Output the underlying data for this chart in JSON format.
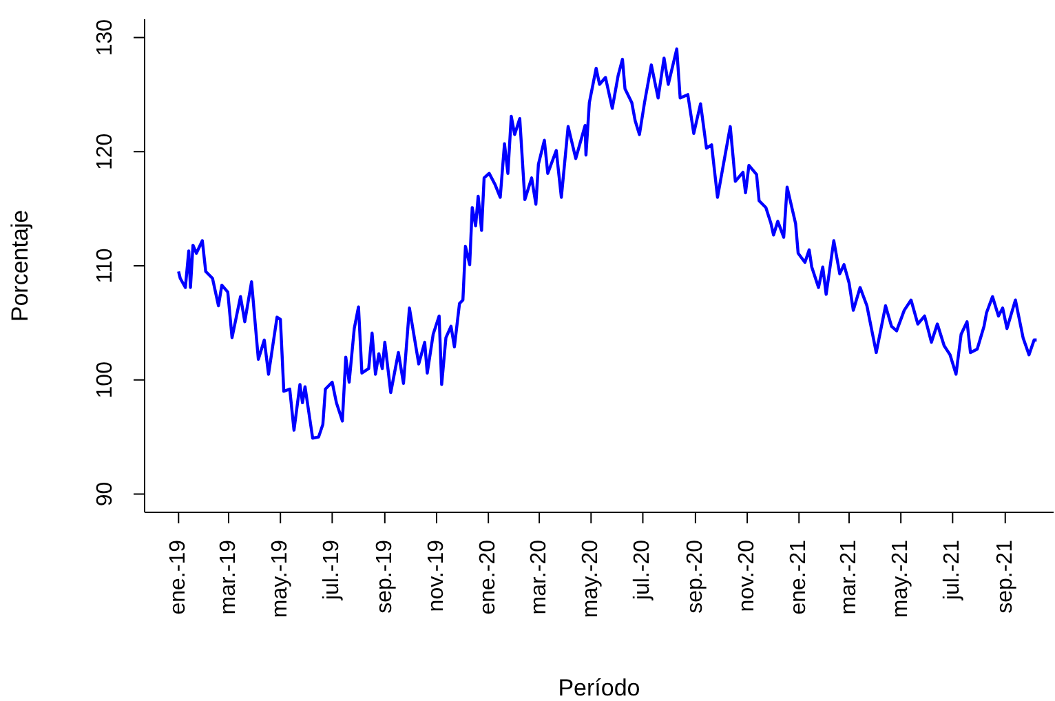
{
  "chart_data": {
    "type": "line",
    "xlabel": "Período",
    "ylabel": "Porcentaje",
    "xlim": [
      "2018-11-22",
      "2021-10-28"
    ],
    "ylim": [
      88.4,
      131.6
    ],
    "yticks": [
      90,
      100,
      110,
      120,
      130
    ],
    "xticks": [
      {
        "value": "2019-01-01",
        "label": "ene.-19"
      },
      {
        "value": "2019-03-01",
        "label": "mar.-19"
      },
      {
        "value": "2019-05-01",
        "label": "may.-19"
      },
      {
        "value": "2019-07-01",
        "label": "jul.-19"
      },
      {
        "value": "2019-09-01",
        "label": "sep.-19"
      },
      {
        "value": "2019-11-01",
        "label": "nov.-19"
      },
      {
        "value": "2020-01-01",
        "label": "ene.-20"
      },
      {
        "value": "2020-03-01",
        "label": "mar.-20"
      },
      {
        "value": "2020-05-01",
        "label": "may.-20"
      },
      {
        "value": "2020-07-01",
        "label": "jul.-20"
      },
      {
        "value": "2020-09-01",
        "label": "sep.-20"
      },
      {
        "value": "2020-11-01",
        "label": "nov.-20"
      },
      {
        "value": "2021-01-01",
        "label": "ene.-21"
      },
      {
        "value": "2021-03-01",
        "label": "mar.-21"
      },
      {
        "value": "2021-05-01",
        "label": "may.-21"
      },
      {
        "value": "2021-07-01",
        "label": "jul.-21"
      },
      {
        "value": "2021-09-01",
        "label": "sep.-21"
      }
    ],
    "x": [
      "2019-01-01",
      "2019-01-03",
      "2019-01-09",
      "2019-01-13",
      "2019-01-15",
      "2019-01-18",
      "2019-01-22",
      "2019-01-29",
      "2019-02-02",
      "2019-02-10",
      "2019-02-17",
      "2019-02-21",
      "2019-02-28",
      "2019-03-05",
      "2019-03-15",
      "2019-03-20",
      "2019-03-28",
      "2019-04-05",
      "2019-04-12",
      "2019-04-17",
      "2019-04-27",
      "2019-05-01",
      "2019-05-05",
      "2019-05-12",
      "2019-05-17",
      "2019-05-24",
      "2019-05-27",
      "2019-05-30",
      "2019-06-08",
      "2019-06-15",
      "2019-06-20",
      "2019-06-23",
      "2019-07-01",
      "2019-07-06",
      "2019-07-13",
      "2019-07-17",
      "2019-07-21",
      "2019-07-27",
      "2019-08-01",
      "2019-08-05",
      "2019-08-13",
      "2019-08-17",
      "2019-08-21",
      "2019-08-25",
      "2019-08-29",
      "2019-09-01",
      "2019-09-08",
      "2019-09-17",
      "2019-09-23",
      "2019-09-30",
      "2019-10-11",
      "2019-10-18",
      "2019-10-21",
      "2019-10-28",
      "2019-11-04",
      "2019-11-07",
      "2019-11-12",
      "2019-11-18",
      "2019-11-22",
      "2019-11-28",
      "2019-12-02",
      "2019-12-05",
      "2019-12-10",
      "2019-12-13",
      "2019-12-17",
      "2019-12-20",
      "2019-12-24",
      "2019-12-27",
      "2020-01-02",
      "2020-01-09",
      "2020-01-15",
      "2020-01-20",
      "2020-01-24",
      "2020-01-28",
      "2020-02-01",
      "2020-02-07",
      "2020-02-13",
      "2020-02-21",
      "2020-02-26",
      "2020-02-29",
      "2020-03-07",
      "2020-03-11",
      "2020-03-21",
      "2020-03-27",
      "2020-04-04",
      "2020-04-13",
      "2020-04-24",
      "2020-04-25",
      "2020-04-29",
      "2020-05-07",
      "2020-05-11",
      "2020-05-18",
      "2020-05-26",
      "2020-06-02",
      "2020-06-07",
      "2020-06-10",
      "2020-06-18",
      "2020-06-22",
      "2020-06-27",
      "2020-07-03",
      "2020-07-11",
      "2020-07-19",
      "2020-07-26",
      "2020-07-31",
      "2020-08-10",
      "2020-08-14",
      "2020-08-23",
      "2020-08-30",
      "2020-09-07",
      "2020-09-14",
      "2020-09-20",
      "2020-09-27",
      "2020-10-04",
      "2020-10-12",
      "2020-10-18",
      "2020-10-27",
      "2020-10-30",
      "2020-11-03",
      "2020-11-12",
      "2020-11-15",
      "2020-11-23",
      "2020-11-29",
      "2020-12-02",
      "2020-12-07",
      "2020-12-14",
      "2020-12-18",
      "2020-12-28",
      "2020-12-31",
      "2021-01-08",
      "2021-01-13",
      "2021-01-16",
      "2021-01-24",
      "2021-01-29",
      "2021-02-02",
      "2021-02-11",
      "2021-02-18",
      "2021-02-23",
      "2021-03-01",
      "2021-03-06",
      "2021-03-14",
      "2021-03-22",
      "2021-04-02",
      "2021-04-13",
      "2021-04-20",
      "2021-04-26",
      "2021-05-05",
      "2021-05-13",
      "2021-05-21",
      "2021-05-29",
      "2021-06-06",
      "2021-06-13",
      "2021-06-21",
      "2021-06-28",
      "2021-07-05",
      "2021-07-11",
      "2021-07-18",
      "2021-07-22",
      "2021-07-30",
      "2021-08-07",
      "2021-08-10",
      "2021-08-17",
      "2021-08-24",
      "2021-08-29",
      "2021-09-03",
      "2021-09-13",
      "2021-09-22",
      "2021-09-29",
      "2021-10-05",
      "2021-10-08"
    ],
    "series": [
      {
        "color": "#0000ff",
        "values": [
          109.5,
          108.9,
          108.1,
          111.3,
          108.1,
          111.8,
          111.1,
          112.2,
          109.5,
          108.9,
          106.5,
          108.3,
          107.7,
          103.7,
          107.3,
          105.1,
          108.6,
          101.8,
          103.5,
          100.5,
          105.5,
          105.3,
          99.0,
          99.2,
          95.6,
          99.6,
          98.0,
          99.4,
          94.9,
          95.0,
          96.1,
          99.2,
          99.8,
          98.0,
          96.4,
          102.0,
          99.8,
          104.5,
          106.4,
          100.6,
          101.0,
          104.1,
          100.5,
          102.3,
          101.0,
          103.3,
          98.9,
          102.4,
          99.7,
          106.3,
          101.4,
          103.3,
          100.6,
          104.0,
          105.6,
          99.6,
          103.7,
          104.7,
          102.9,
          106.7,
          107.0,
          111.7,
          110.1,
          115.1,
          113.5,
          116.1,
          113.1,
          117.7,
          118.1,
          117.1,
          116.0,
          120.7,
          118.1,
          123.1,
          121.5,
          122.9,
          115.8,
          117.7,
          115.4,
          118.9,
          121.0,
          118.1,
          120.1,
          116.0,
          122.2,
          119.4,
          122.3,
          119.7,
          124.3,
          127.3,
          125.9,
          126.5,
          123.8,
          126.7,
          128.1,
          125.5,
          124.3,
          122.7,
          121.5,
          124.3,
          127.6,
          124.7,
          128.2,
          125.9,
          129.0,
          124.7,
          125.0,
          121.6,
          124.2,
          120.3,
          120.6,
          116.0,
          118.9,
          122.2,
          117.4,
          118.2,
          116.4,
          118.8,
          118.0,
          115.7,
          115.1,
          113.7,
          112.7,
          113.9,
          112.5,
          116.9,
          113.7,
          111.1,
          110.3,
          111.4,
          109.9,
          108.1,
          109.9,
          107.5,
          112.2,
          109.3,
          110.1,
          108.5,
          106.1,
          108.1,
          106.5,
          102.4,
          106.5,
          104.7,
          104.3,
          106.1,
          107.0,
          104.9,
          105.6,
          103.3,
          104.9,
          103.0,
          102.2,
          100.5,
          104.0,
          105.1,
          102.4,
          102.7,
          104.7,
          105.9,
          107.3,
          105.6,
          106.3,
          104.5,
          107.0,
          103.7,
          102.2,
          103.5,
          103.5
        ]
      }
    ]
  }
}
